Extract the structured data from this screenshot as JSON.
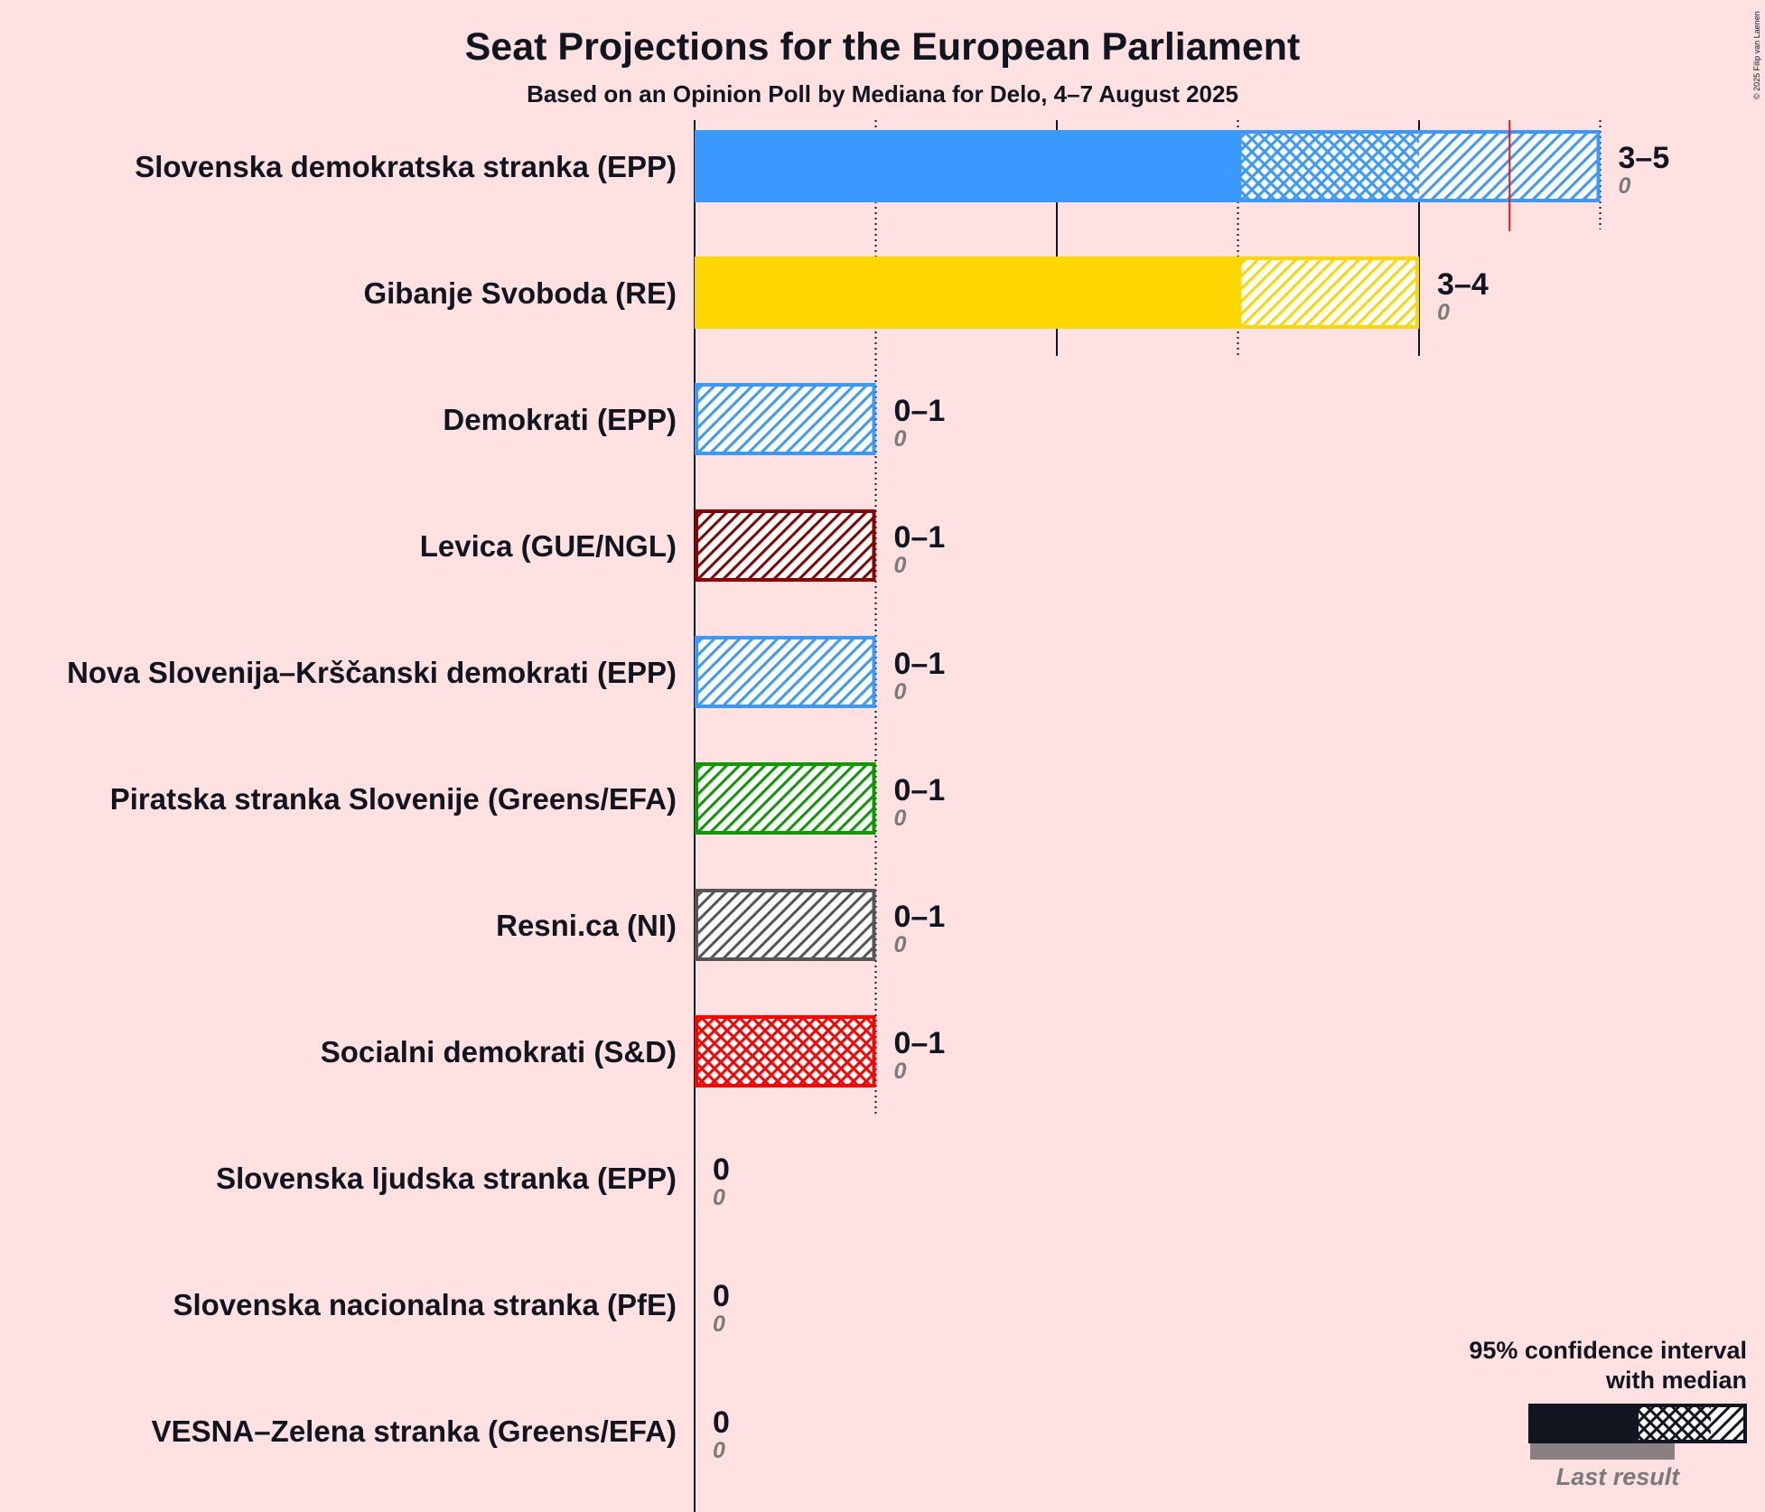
{
  "colors": {
    "background": "#ffe1e1",
    "text": "#10151f",
    "last_result": "#7a7a7a",
    "majority_line": "#e31a1c"
  },
  "copyright": "© 2025 Filip van Laenen",
  "chart_data": {
    "type": "bar",
    "orientation": "horizontal",
    "title": "Seat Projections for the European Parliament",
    "subtitle": "Based on an Opinion Poll by Mediana for Delo, 4–7 August 2025",
    "xlim": [
      0,
      5
    ],
    "solid_gridlines": [
      0,
      2,
      4
    ],
    "dotted_gridlines": [
      1,
      3,
      5
    ],
    "red_marker": 4.5,
    "series": [
      {
        "name": "Slovenska demokratska stranka (EPP)",
        "low": 3,
        "median": 4,
        "high": 5,
        "range_label": "3–5",
        "last_result": "0",
        "color": "#3a99ff"
      },
      {
        "name": "Gibanje Svoboda (RE)",
        "low": 3,
        "median": 3,
        "high": 4,
        "range_label": "3–4",
        "last_result": "0",
        "color": "#ffd700"
      },
      {
        "name": "Demokrati (EPP)",
        "low": 0,
        "median": 0,
        "high": 1,
        "range_label": "0–1",
        "last_result": "0",
        "color": "#3a99ff"
      },
      {
        "name": "Levica (GUE/NGL)",
        "low": 0,
        "median": 0,
        "high": 1,
        "range_label": "0–1",
        "last_result": "0",
        "color": "#8b0000"
      },
      {
        "name": "Nova Slovenija–Krščanski demokrati (EPP)",
        "low": 0,
        "median": 0,
        "high": 1,
        "range_label": "0–1",
        "last_result": "0",
        "color": "#3a99ff"
      },
      {
        "name": "Piratska stranka Slovenije (Greens/EFA)",
        "low": 0,
        "median": 0,
        "high": 1,
        "range_label": "0–1",
        "last_result": "0",
        "color": "#0b9a00"
      },
      {
        "name": "Resni.ca (NI)",
        "low": 0,
        "median": 0,
        "high": 1,
        "range_label": "0–1",
        "last_result": "0",
        "color": "#555555"
      },
      {
        "name": "Socialni demokrati (S&D)",
        "low": 0,
        "median": 1,
        "high": 1,
        "range_label": "0–1",
        "last_result": "0",
        "color": "#ff0000"
      },
      {
        "name": "Slovenska ljudska stranka (EPP)",
        "low": 0,
        "median": 0,
        "high": 0,
        "range_label": "0",
        "last_result": "0",
        "color": "#3a99ff"
      },
      {
        "name": "Slovenska nacionalna stranka (PfE)",
        "low": 0,
        "median": 0,
        "high": 0,
        "range_label": "0",
        "last_result": "0",
        "color": "#1f3a93"
      },
      {
        "name": "VESNA–Zelena stranka (Greens/EFA)",
        "low": 0,
        "median": 0,
        "high": 0,
        "range_label": "0",
        "last_result": "0",
        "color": "#0b9a00"
      }
    ],
    "legend": {
      "title_line1": "95% confidence interval",
      "title_line2": "with median",
      "last_result_label": "Last result",
      "color": "#10151f"
    }
  }
}
